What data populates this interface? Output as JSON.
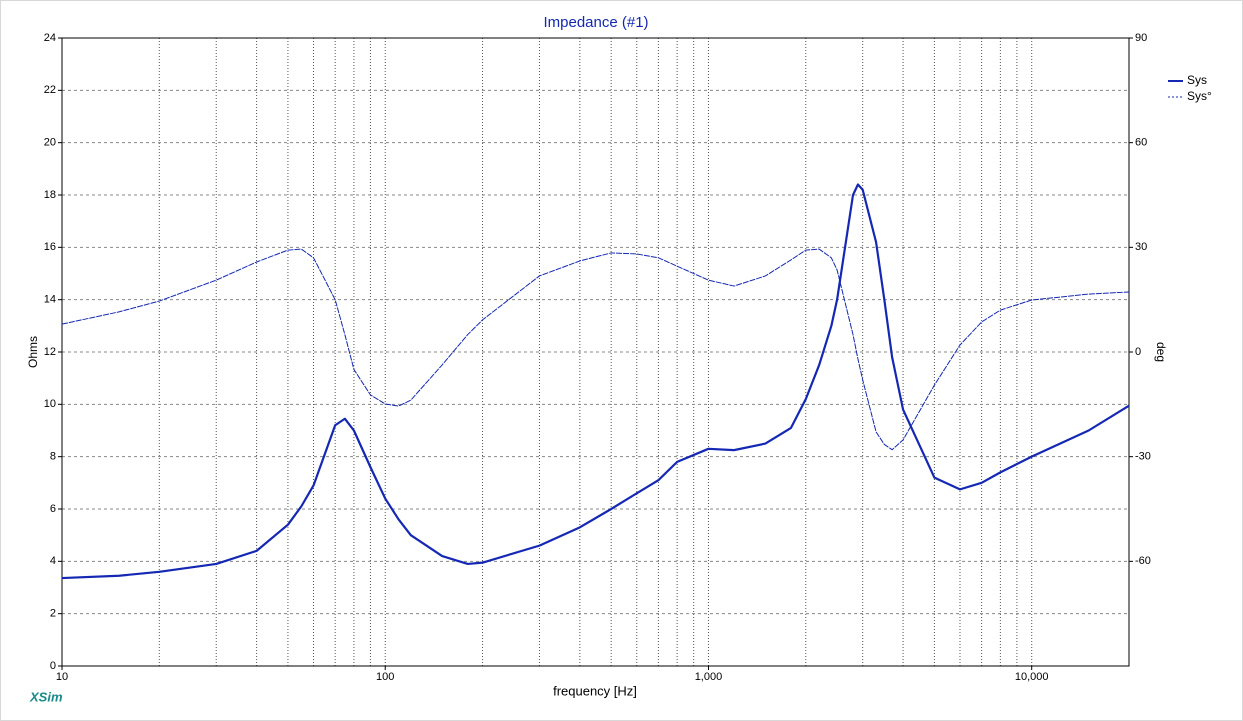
{
  "chart_data": {
    "type": "line",
    "title": "Impedance (#1)",
    "xlabel": "frequency [Hz]",
    "ylabel": "Ohms",
    "y2label": "deg",
    "watermark": "XSim",
    "xscale": "log",
    "xlim": [
      10,
      20000
    ],
    "ylim": [
      0,
      24
    ],
    "y2lim": [
      -90,
      90
    ],
    "xticks": [
      10,
      100,
      {
        "value": 1000,
        "label": "1,000"
      },
      {
        "value": 10000,
        "label": "10,000"
      }
    ],
    "xgrid": [
      20,
      30,
      40,
      50,
      60,
      70,
      80,
      90,
      100,
      200,
      300,
      400,
      500,
      600,
      700,
      800,
      900,
      1000,
      2000,
      3000,
      4000,
      5000,
      6000,
      7000,
      8000,
      9000,
      10000
    ],
    "yticks": [
      0,
      2,
      4,
      6,
      8,
      10,
      12,
      14,
      16,
      18,
      20,
      22,
      24
    ],
    "y2ticks": [
      90,
      60,
      30,
      0,
      -30,
      -60
    ],
    "grid": true,
    "legend": "right",
    "x": [
      10,
      15,
      20,
      30,
      40,
      50,
      55,
      60,
      70,
      75,
      80,
      90,
      100,
      110,
      120,
      150,
      180,
      200,
      300,
      400,
      500,
      600,
      700,
      800,
      1000,
      1200,
      1500,
      1800,
      2000,
      2200,
      2400,
      2500,
      2800,
      2900,
      3000,
      3300,
      3500,
      3700,
      4000,
      5000,
      6000,
      7000,
      8000,
      10000,
      15000,
      20000
    ],
    "series": [
      {
        "name": "Sys",
        "color": "#1428b4",
        "values": [
          3.36,
          3.45,
          3.6,
          3.9,
          4.4,
          5.4,
          6.1,
          6.9,
          9.2,
          9.45,
          9.0,
          7.6,
          6.4,
          5.6,
          5.0,
          4.2,
          3.9,
          3.95,
          4.6,
          5.3,
          6.0,
          6.6,
          7.1,
          7.8,
          8.3,
          8.25,
          8.5,
          9.1,
          10.2,
          11.5,
          13.0,
          14.0,
          18.0,
          18.4,
          18.2,
          16.2,
          14.0,
          11.8,
          9.8,
          7.2,
          6.75,
          7.0,
          7.4,
          8.0,
          9.0,
          9.95
        ]
      },
      {
        "name": "Sys°",
        "color": "#1428b4",
        "axis": "y2",
        "line_style": "dashed",
        "values": [
          8,
          11.5,
          14.6,
          20.6,
          25.8,
          29.2,
          29.5,
          27,
          15,
          5,
          -5,
          -12.3,
          -14.9,
          -15.5,
          -13.8,
          -3.7,
          5,
          9.2,
          21.8,
          26.1,
          28.4,
          28.1,
          27,
          24.6,
          20.6,
          18.9,
          21.8,
          26.4,
          29.2,
          29.5,
          27,
          23.5,
          5,
          -2,
          -8,
          -22.9,
          -26.5,
          -28,
          -25.2,
          -9.5,
          2,
          8.6,
          12,
          14.9,
          16.6,
          17.2
        ]
      }
    ]
  }
}
